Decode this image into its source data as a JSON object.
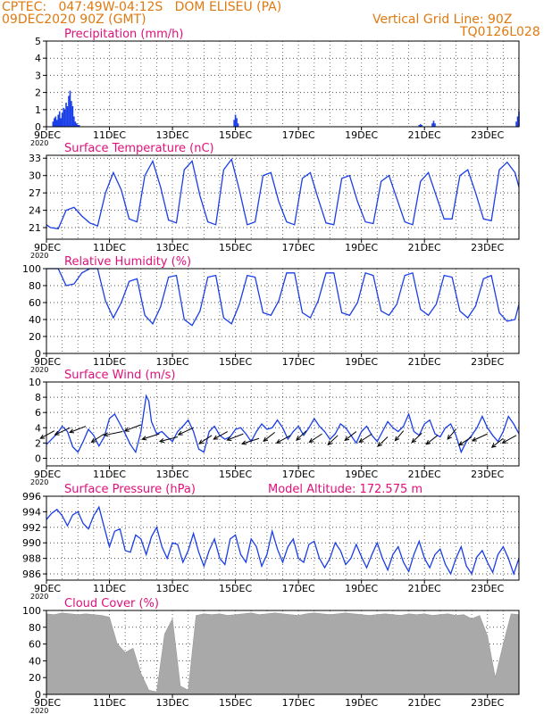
{
  "header": {
    "station": "CPTEC:   047:49W-04:12S   DOM ELISEU (PA)",
    "run": "09DEC2020 90Z (GMT)",
    "grid_note": "Vertical Grid Line: 90Z",
    "code": "TQ0126L028"
  },
  "colors": {
    "header": "#e07a10",
    "panel_title": "#e0107a",
    "series": "#1a3ee8",
    "cloud": "#a9a9a9",
    "axis": "#000000"
  },
  "x_axis": {
    "tick_labels": [
      "9DEC",
      "11DEC",
      "13DEC",
      "15DEC",
      "17DEC",
      "19DEC",
      "21DEC",
      "23DEC"
    ],
    "year_label": "2020",
    "range_hours": [
      0,
      360
    ]
  },
  "chart_data": [
    {
      "id": "precip",
      "type": "bar",
      "title": "Precipitation (mm/h)",
      "ylim": [
        0,
        5
      ],
      "yticks": [
        0,
        1,
        2,
        3,
        4,
        5
      ],
      "x_unit": "hours since 9DEC 00Z",
      "x": [
        5,
        6,
        7,
        8,
        9,
        10,
        11,
        12,
        13,
        14,
        15,
        16,
        17,
        18,
        19,
        20,
        21,
        22,
        23,
        24,
        25,
        143,
        144,
        145,
        146,
        284,
        285,
        286,
        294,
        295,
        296,
        358,
        359,
        360
      ],
      "values": [
        0.3,
        0.5,
        0.6,
        0.4,
        0.7,
        0.9,
        0.5,
        0.8,
        1.1,
        1.0,
        1.4,
        1.2,
        1.8,
        2.1,
        1.5,
        1.2,
        0.6,
        0.3,
        0.2,
        0.1,
        0.1,
        0.4,
        0.7,
        0.5,
        0.2,
        0.1,
        0.15,
        0.1,
        0.2,
        0.35,
        0.2,
        0.3,
        0.6,
        0.9
      ]
    },
    {
      "id": "temp",
      "type": "line",
      "title": "Surface Temperature (nC)",
      "ylim": [
        19,
        33.5
      ],
      "yticks": [
        21,
        24,
        27,
        30,
        33
      ],
      "x": [
        0,
        3,
        9,
        15,
        21,
        27,
        33,
        39,
        45,
        51,
        57,
        63,
        69,
        75,
        81,
        87,
        93,
        99,
        105,
        111,
        117,
        123,
        129,
        135,
        141,
        147,
        153,
        159,
        165,
        171,
        177,
        183,
        189,
        195,
        201,
        207,
        213,
        219,
        225,
        231,
        237,
        243,
        249,
        255,
        261,
        267,
        273,
        279,
        285,
        291,
        297,
        303,
        309,
        315,
        321,
        327,
        333,
        339,
        345,
        351,
        357,
        360
      ],
      "values": [
        21.5,
        21.0,
        20.8,
        24.0,
        24.5,
        23.0,
        21.8,
        21.3,
        27.0,
        30.5,
        27.5,
        22.5,
        22.0,
        30.0,
        32.5,
        28.0,
        22.3,
        21.8,
        31.0,
        32.5,
        26.5,
        22.0,
        21.5,
        31.0,
        32.8,
        27.5,
        21.5,
        22.0,
        30.0,
        30.5,
        25.5,
        22.0,
        21.5,
        29.5,
        30.5,
        26.0,
        21.8,
        21.5,
        29.5,
        30.0,
        25.5,
        22.0,
        21.7,
        29.0,
        30.0,
        26.0,
        22.0,
        21.5,
        29.0,
        30.5,
        26.5,
        22.5,
        22.5,
        30.0,
        31.0,
        27.0,
        22.5,
        22.2,
        31.0,
        32.3,
        30.5,
        28.0
      ]
    },
    {
      "id": "rh",
      "type": "line",
      "title": "Relative Humidity (%)",
      "ylim": [
        0,
        100
      ],
      "yticks": [
        0,
        20,
        40,
        60,
        80,
        100
      ],
      "x": [
        0,
        3,
        9,
        15,
        21,
        27,
        33,
        39,
        45,
        51,
        57,
        63,
        69,
        75,
        81,
        87,
        93,
        99,
        105,
        111,
        117,
        123,
        129,
        135,
        141,
        147,
        153,
        159,
        165,
        171,
        177,
        183,
        189,
        195,
        201,
        207,
        213,
        219,
        225,
        231,
        237,
        243,
        249,
        255,
        261,
        267,
        273,
        279,
        285,
        291,
        297,
        303,
        309,
        315,
        321,
        327,
        333,
        339,
        345,
        351,
        357,
        360
      ],
      "values": [
        100,
        100,
        100,
        80,
        82,
        95,
        100,
        100,
        62,
        42,
        60,
        85,
        88,
        45,
        35,
        55,
        90,
        92,
        40,
        33,
        50,
        90,
        92,
        42,
        35,
        58,
        92,
        90,
        48,
        45,
        62,
        95,
        95,
        48,
        42,
        62,
        95,
        95,
        48,
        45,
        60,
        95,
        92,
        50,
        45,
        58,
        92,
        95,
        52,
        45,
        58,
        92,
        90,
        50,
        42,
        56,
        88,
        92,
        48,
        38,
        40,
        58
      ]
    },
    {
      "id": "wind",
      "type": "line",
      "title": "Surface Wind (m/s)",
      "ylim": [
        -1,
        10
      ],
      "yticks": [
        0,
        2,
        4,
        6,
        8,
        10
      ],
      "x": [
        0,
        4,
        8,
        12,
        16,
        20,
        24,
        28,
        32,
        36,
        40,
        44,
        48,
        52,
        56,
        60,
        64,
        68,
        72,
        76,
        78,
        80,
        84,
        88,
        92,
        96,
        100,
        104,
        108,
        112,
        116,
        120,
        124,
        128,
        132,
        136,
        140,
        144,
        148,
        152,
        156,
        160,
        164,
        168,
        172,
        176,
        180,
        184,
        188,
        192,
        196,
        200,
        204,
        208,
        212,
        216,
        220,
        224,
        228,
        232,
        236,
        240,
        244,
        248,
        252,
        256,
        260,
        264,
        268,
        272,
        276,
        280,
        284,
        288,
        292,
        296,
        300,
        304,
        308,
        312,
        316,
        320,
        324,
        328,
        332,
        336,
        340,
        344,
        348,
        352,
        356,
        360
      ],
      "values": [
        1.8,
        2.5,
        3.2,
        4.2,
        3.5,
        1.5,
        0.8,
        2.2,
        3.8,
        3.0,
        1.6,
        2.8,
        5.2,
        5.8,
        4.5,
        3.2,
        1.8,
        0.8,
        3.5,
        8.2,
        7.5,
        4.8,
        3.2,
        3.5,
        2.8,
        2.2,
        3.5,
        4.2,
        5.0,
        3.5,
        1.2,
        0.8,
        3.5,
        4.2,
        3.0,
        2.5,
        2.8,
        3.8,
        4.0,
        3.2,
        2.2,
        3.5,
        4.5,
        3.8,
        4.0,
        5.0,
        4.0,
        2.5,
        3.5,
        4.2,
        3.0,
        4.0,
        5.2,
        4.2,
        3.5,
        2.5,
        3.2,
        4.5,
        4.0,
        3.0,
        2.0,
        3.5,
        4.2,
        3.0,
        2.2,
        3.5,
        4.8,
        4.0,
        3.5,
        4.2,
        5.8,
        3.5,
        3.0,
        4.5,
        5.0,
        3.2,
        2.8,
        4.0,
        4.5,
        3.0,
        0.8,
        2.2,
        3.0,
        4.0,
        5.5,
        4.0,
        3.0,
        2.2,
        3.5,
        5.5,
        4.5,
        3.2
      ],
      "vectors": [
        {
          "x": 6,
          "y": 3.6,
          "dir": 225
        },
        {
          "x": 18,
          "y": 4.0,
          "dir": 220
        },
        {
          "x": 30,
          "y": 4.2,
          "dir": 215
        },
        {
          "x": 44,
          "y": 3.2,
          "dir": 230
        },
        {
          "x": 58,
          "y": 3.5,
          "dir": 200
        },
        {
          "x": 72,
          "y": 4.4,
          "dir": 215
        },
        {
          "x": 86,
          "y": 3.2,
          "dir": 210
        },
        {
          "x": 100,
          "y": 2.8,
          "dir": 205
        },
        {
          "x": 112,
          "y": 4.0,
          "dir": 220
        },
        {
          "x": 126,
          "y": 3.0,
          "dir": 230
        },
        {
          "x": 138,
          "y": 3.5,
          "dir": 225
        },
        {
          "x": 150,
          "y": 3.2,
          "dir": 215
        },
        {
          "x": 162,
          "y": 2.6,
          "dir": 210
        },
        {
          "x": 174,
          "y": 3.4,
          "dir": 235
        },
        {
          "x": 186,
          "y": 3.0,
          "dir": 225
        },
        {
          "x": 198,
          "y": 3.6,
          "dir": 240
        },
        {
          "x": 210,
          "y": 3.2,
          "dir": 230
        },
        {
          "x": 222,
          "y": 3.0,
          "dir": 240
        },
        {
          "x": 236,
          "y": 3.5,
          "dir": 235
        },
        {
          "x": 248,
          "y": 3.2,
          "dir": 230
        },
        {
          "x": 260,
          "y": 2.8,
          "dir": 240
        },
        {
          "x": 272,
          "y": 3.6,
          "dir": 245
        },
        {
          "x": 286,
          "y": 3.3,
          "dir": 240
        },
        {
          "x": 298,
          "y": 3.0,
          "dir": 235
        },
        {
          "x": 312,
          "y": 3.8,
          "dir": 245
        },
        {
          "x": 324,
          "y": 2.8,
          "dir": 230
        },
        {
          "x": 336,
          "y": 3.2,
          "dir": 220
        },
        {
          "x": 348,
          "y": 2.6,
          "dir": 235
        },
        {
          "x": 358,
          "y": 3.0,
          "dir": 225
        }
      ]
    },
    {
      "id": "pressure",
      "type": "line",
      "title": "Surface Pressure (hPa)",
      "extra_label": "Model Altitude: 172.575  m",
      "ylim": [
        985.2,
        996
      ],
      "yticks": [
        986,
        988,
        990,
        992,
        994,
        996
      ],
      "x": [
        0,
        4,
        8,
        12,
        16,
        20,
        24,
        28,
        32,
        36,
        40,
        44,
        48,
        52,
        56,
        60,
        64,
        68,
        72,
        76,
        80,
        84,
        88,
        92,
        96,
        100,
        104,
        108,
        112,
        116,
        120,
        124,
        128,
        132,
        136,
        140,
        144,
        148,
        152,
        156,
        160,
        164,
        168,
        172,
        176,
        180,
        184,
        188,
        192,
        196,
        200,
        204,
        208,
        212,
        216,
        220,
        224,
        228,
        232,
        236,
        240,
        244,
        248,
        252,
        256,
        260,
        264,
        268,
        272,
        276,
        280,
        284,
        288,
        292,
        296,
        300,
        304,
        308,
        312,
        316,
        320,
        324,
        328,
        332,
        336,
        340,
        344,
        348,
        352,
        356,
        360
      ],
      "values": [
        993.0,
        993.8,
        994.3,
        993.5,
        992.2,
        993.6,
        994.0,
        992.5,
        991.8,
        993.5,
        994.6,
        992.0,
        989.5,
        991.5,
        991.8,
        989.0,
        988.8,
        991.0,
        990.5,
        988.5,
        990.8,
        992.0,
        989.5,
        988.0,
        990.0,
        989.8,
        987.5,
        989.0,
        991.2,
        988.8,
        987.0,
        989.0,
        990.5,
        988.0,
        987.2,
        990.5,
        991.0,
        988.5,
        987.5,
        990.5,
        989.5,
        987.0,
        988.5,
        991.5,
        989.2,
        987.5,
        989.5,
        990.5,
        988.0,
        987.5,
        989.8,
        990.2,
        988.0,
        986.8,
        988.0,
        990.0,
        989.0,
        987.2,
        988.0,
        989.8,
        988.2,
        986.8,
        988.5,
        990.0,
        988.0,
        986.5,
        988.5,
        989.5,
        987.5,
        986.3,
        988.5,
        990.2,
        988.0,
        986.8,
        988.5,
        989.2,
        987.2,
        986.0,
        988.0,
        989.5,
        987.0,
        986.0,
        988.2,
        989.0,
        987.5,
        986.2,
        988.5,
        989.5,
        988.0,
        986.0,
        988.0
      ]
    },
    {
      "id": "cloud",
      "type": "area",
      "title": "Cloud Cover (%)",
      "ylim": [
        0,
        100
      ],
      "yticks": [
        0,
        20,
        40,
        60,
        80,
        100
      ],
      "x": [
        0,
        6,
        12,
        18,
        24,
        30,
        36,
        42,
        48,
        54,
        60,
        66,
        72,
        78,
        84,
        90,
        96,
        102,
        108,
        114,
        120,
        126,
        132,
        138,
        144,
        150,
        156,
        162,
        168,
        174,
        180,
        186,
        192,
        198,
        204,
        210,
        216,
        222,
        228,
        234,
        240,
        246,
        252,
        258,
        264,
        270,
        276,
        282,
        288,
        294,
        300,
        306,
        312,
        318,
        324,
        330,
        336,
        342,
        348,
        354,
        360
      ],
      "values": [
        96,
        95,
        97,
        96,
        95,
        96,
        95,
        94,
        92,
        60,
        50,
        55,
        25,
        5,
        3,
        72,
        90,
        10,
        5,
        94,
        96,
        95,
        96,
        94,
        95,
        96,
        97,
        95,
        96,
        97,
        96,
        95,
        94,
        96,
        97,
        96,
        95,
        96,
        97,
        96,
        95,
        94,
        95,
        96,
        95,
        94,
        96,
        95,
        96,
        94,
        95,
        96,
        94,
        95,
        90,
        94,
        70,
        20,
        60,
        96,
        95
      ]
    }
  ]
}
